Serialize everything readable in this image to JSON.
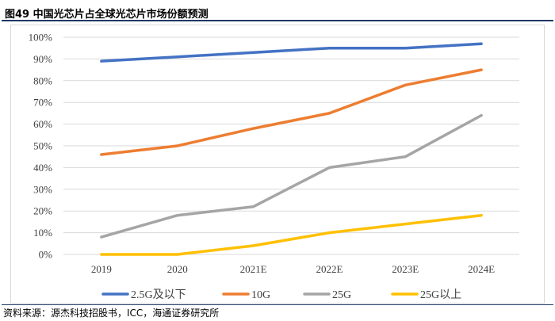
{
  "header": {
    "title": "图49 中国光芯片占全球光芯片市场份额预测"
  },
  "footer": {
    "source": "资料来源：源杰科技招股书，ICC，海通证券研究所"
  },
  "colors": {
    "title_rule": "#1f3864",
    "grid": "#d9d9d9"
  },
  "chart_data": {
    "type": "line",
    "title": "",
    "xlabel": "",
    "ylabel": "",
    "categories": [
      "2019",
      "2020",
      "2021E",
      "2022E",
      "2023E",
      "2024E"
    ],
    "ylim": [
      0,
      100
    ],
    "yticks": [
      "0%",
      "10%",
      "20%",
      "30%",
      "40%",
      "50%",
      "60%",
      "70%",
      "80%",
      "90%",
      "100%"
    ],
    "grid": true,
    "legend_position": "bottom",
    "series": [
      {
        "name": "2.5G及以下",
        "color": "#4472c4",
        "values": [
          89,
          91,
          93,
          95,
          95,
          97
        ]
      },
      {
        "name": "10G",
        "color": "#ed7d31",
        "values": [
          46,
          50,
          58,
          65,
          78,
          85
        ]
      },
      {
        "name": "25G",
        "color": "#a5a5a5",
        "values": [
          8,
          18,
          22,
          40,
          45,
          64
        ]
      },
      {
        "name": "25G以上",
        "color": "#ffc000",
        "values": [
          0,
          0,
          4,
          10,
          14,
          18
        ]
      }
    ]
  }
}
